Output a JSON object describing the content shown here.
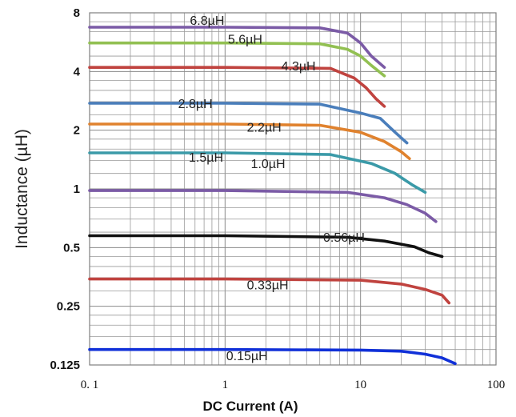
{
  "chart_data": {
    "type": "line",
    "title": "",
    "xlabel": "DC Current (A)",
    "ylabel": "Inductance (µH)",
    "x_scale": "log",
    "y_scale": "log",
    "xlim": [
      0.1,
      100
    ],
    "ylim": [
      0.125,
      8
    ],
    "x_ticks": [
      0.1,
      1,
      10,
      100
    ],
    "x_tick_labels": [
      "0. 1",
      "1",
      "10",
      "100"
    ],
    "y_ticks": [
      0.125,
      0.25,
      0.5,
      1,
      2,
      4,
      8
    ],
    "y_tick_labels": [
      "0.125",
      "0.25",
      "0.5",
      "1",
      "2",
      "4",
      "8"
    ],
    "grid": true,
    "series": [
      {
        "name": "6.8µH",
        "label": "6.8µH",
        "label_at": [
          0.55,
          6.95
        ],
        "color": "#7b5ba6",
        "points": [
          [
            0.1,
            6.75
          ],
          [
            1,
            6.75
          ],
          [
            5,
            6.7
          ],
          [
            8,
            6.3
          ],
          [
            10,
            5.6
          ],
          [
            12,
            4.8
          ],
          [
            15,
            4.2
          ]
        ]
      },
      {
        "name": "5.6µH",
        "label": "5.6µH",
        "label_at": [
          1.05,
          5.55
        ],
        "color": "#92c052",
        "points": [
          [
            0.1,
            5.6
          ],
          [
            1,
            5.6
          ],
          [
            5,
            5.55
          ],
          [
            8,
            5.2
          ],
          [
            10,
            4.8
          ],
          [
            12,
            4.3
          ],
          [
            15,
            3.8
          ]
        ]
      },
      {
        "name": "4.3µH",
        "label": "4.3µH",
        "label_at": [
          2.6,
          4.05
        ],
        "color": "#c0433f",
        "points": [
          [
            0.1,
            4.2
          ],
          [
            1,
            4.2
          ],
          [
            6,
            4.15
          ],
          [
            9,
            3.7
          ],
          [
            11,
            3.3
          ],
          [
            13,
            2.9
          ],
          [
            15,
            2.65
          ]
        ]
      },
      {
        "name": "2.8µH",
        "label": "2.8µH",
        "label_at": [
          0.45,
          2.6
        ],
        "color": "#4a7ebb",
        "points": [
          [
            0.1,
            2.75
          ],
          [
            1,
            2.75
          ],
          [
            5,
            2.72
          ],
          [
            10,
            2.45
          ],
          [
            14,
            2.3
          ],
          [
            18,
            1.95
          ],
          [
            22,
            1.72
          ]
        ]
      },
      {
        "name": "2.2µH",
        "label": "2.2µH",
        "label_at": [
          1.45,
          1.97
        ],
        "color": "#e0822e",
        "points": [
          [
            0.1,
            2.15
          ],
          [
            1,
            2.15
          ],
          [
            5,
            2.12
          ],
          [
            10,
            1.95
          ],
          [
            15,
            1.75
          ],
          [
            20,
            1.55
          ],
          [
            23,
            1.43
          ]
        ]
      },
      {
        "name": "1.5µH",
        "label": "1.5µH",
        "label_at": [
          0.54,
          1.38
        ],
        "color": "#3b9aa8",
        "points": [
          [
            0.1,
            1.53
          ],
          [
            1,
            1.53
          ],
          [
            6,
            1.5
          ],
          [
            12,
            1.35
          ],
          [
            18,
            1.2
          ],
          [
            24,
            1.05
          ],
          [
            30,
            0.96
          ]
        ]
      },
      {
        "name": "1.0µH",
        "label": "1.0µH",
        "label_at": [
          1.55,
          1.28
        ],
        "color": "#7b5ba6",
        "points": [
          [
            0.1,
            0.98
          ],
          [
            1,
            0.98
          ],
          [
            8,
            0.96
          ],
          [
            15,
            0.9
          ],
          [
            22,
            0.83
          ],
          [
            30,
            0.75
          ],
          [
            36,
            0.68
          ]
        ]
      },
      {
        "name": "0.56µH",
        "label": "0.56µH",
        "label_at": [
          5.3,
          0.535
        ],
        "color": "#111111",
        "points": [
          [
            0.1,
            0.575
          ],
          [
            1,
            0.575
          ],
          [
            8,
            0.565
          ],
          [
            15,
            0.54
          ],
          [
            25,
            0.505
          ],
          [
            32,
            0.47
          ],
          [
            40,
            0.45
          ]
        ]
      },
      {
        "name": "0.33µH",
        "label": "0.33µH",
        "label_at": [
          1.45,
          0.305
        ],
        "color": "#c0433f",
        "points": [
          [
            0.1,
            0.345
          ],
          [
            1,
            0.345
          ],
          [
            10,
            0.34
          ],
          [
            20,
            0.325
          ],
          [
            30,
            0.305
          ],
          [
            40,
            0.285
          ],
          [
            45,
            0.26
          ]
        ]
      },
      {
        "name": "0.15µH",
        "label": "0.15µH",
        "label_at": [
          1.02,
          0.132
        ],
        "color": "#1030d8",
        "points": [
          [
            0.1,
            0.15
          ],
          [
            1,
            0.15
          ],
          [
            10,
            0.149
          ],
          [
            20,
            0.147
          ],
          [
            30,
            0.142
          ],
          [
            40,
            0.136
          ],
          [
            50,
            0.127
          ]
        ]
      }
    ]
  }
}
